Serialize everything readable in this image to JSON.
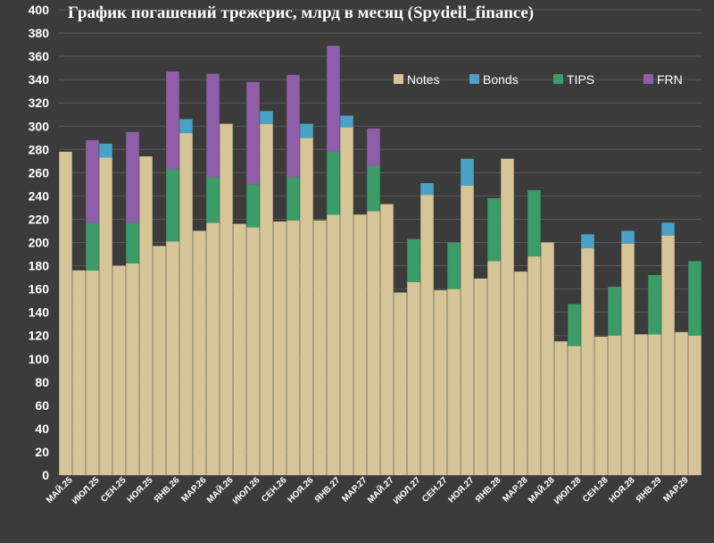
{
  "chart_data": {
    "type": "bar",
    "stacked": true,
    "title": "График погашений трежерис, млрд в месяц (Spydell_finance)",
    "ylim": [
      0,
      400
    ],
    "ytick_step": 20,
    "grid": true,
    "legend_position": "top-right",
    "categories": [
      "МАЙ.25",
      "ИЮН.25",
      "ИЮЛ.25",
      "АВГ.25",
      "СЕН.25",
      "ОКТ.25",
      "НОЯ.25",
      "ДЕК.25",
      "ЯНВ.26",
      "ФЕВ.26",
      "МАР.26",
      "АПР.26",
      "МАЙ.26",
      "ИЮН.26",
      "ИЮЛ.26",
      "АВГ.26",
      "СЕН.26",
      "ОКТ.26",
      "НОЯ.26",
      "ДЕК.26",
      "ЯНВ.27",
      "ФЕВ.27",
      "МАР.27",
      "АПР.27",
      "МАЙ.27",
      "ИЮН.27",
      "ИЮЛ.27",
      "АВГ.27",
      "СЕН.27",
      "ОКТ.27",
      "НОЯ.27",
      "ДЕК.27",
      "ЯНВ.28",
      "ФЕВ.28",
      "МАР.28",
      "АПР.28",
      "МАЙ.28",
      "ИЮН.28",
      "ИЮЛ.28",
      "АВГ.28",
      "СЕН.28",
      "ОКТ.28",
      "НОЯ.28",
      "ДЕК.28",
      "ЯНВ.29",
      "ФЕВ.29",
      "МАР.29",
      "АПР.29"
    ],
    "visible_xticks": [
      "МАЙ.25",
      "ИЮЛ.25",
      "СЕН.25",
      "НОЯ.25",
      "ЯНВ.26",
      "МАР.26",
      "МАЙ.26",
      "ИЮЛ.26",
      "СЕН.26",
      "НОЯ.26",
      "ЯНВ.27",
      "МАР.27",
      "МАЙ.27",
      "ИЮЛ.27",
      "СЕН.27",
      "НОЯ.27",
      "ЯНВ.28",
      "МАР.28",
      "МАЙ.28",
      "ИЮЛ.28",
      "СЕН.28",
      "НОЯ.28",
      "ЯНВ.29",
      "МАР.29"
    ],
    "series": [
      {
        "name": "Notes",
        "color": "#d6c596",
        "values": [
          278,
          176,
          176,
          273,
          180,
          182,
          274,
          197,
          201,
          294,
          210,
          217,
          302,
          216,
          213,
          302,
          218,
          219,
          290,
          219,
          224,
          299,
          224,
          227,
          233,
          157,
          166,
          241,
          159,
          160,
          249,
          169,
          184,
          272,
          175,
          188,
          200,
          115,
          111,
          195,
          119,
          120,
          199,
          121,
          121,
          206,
          123,
          120
        ]
      },
      {
        "name": "Bonds",
        "color": "#4aa3c7",
        "values": [
          0,
          0,
          0,
          12,
          0,
          0,
          0,
          0,
          0,
          12,
          0,
          0,
          0,
          0,
          0,
          11,
          0,
          0,
          12,
          0,
          0,
          10,
          0,
          0,
          0,
          0,
          0,
          10,
          0,
          0,
          23,
          0,
          0,
          0,
          0,
          0,
          0,
          0,
          0,
          12,
          0,
          0,
          11,
          0,
          0,
          11,
          0,
          0
        ]
      },
      {
        "name": "TIPS",
        "color": "#3a9c66",
        "values": [
          0,
          0,
          41,
          0,
          0,
          35,
          0,
          0,
          62,
          0,
          0,
          39,
          0,
          0,
          37,
          0,
          0,
          37,
          0,
          0,
          54,
          0,
          0,
          39,
          0,
          0,
          37,
          0,
          0,
          40,
          0,
          0,
          54,
          0,
          0,
          57,
          0,
          0,
          36,
          0,
          0,
          42,
          0,
          0,
          51,
          0,
          0,
          64
        ]
      },
      {
        "name": "FRN",
        "color": "#8e5fa8",
        "values": [
          0,
          0,
          71,
          0,
          0,
          78,
          0,
          0,
          84,
          0,
          0,
          89,
          0,
          0,
          88,
          0,
          0,
          88,
          0,
          0,
          91,
          0,
          0,
          32,
          0,
          0,
          0,
          0,
          0,
          0,
          0,
          0,
          0,
          0,
          0,
          0,
          0,
          0,
          0,
          0,
          0,
          0,
          0,
          0,
          0,
          0,
          0,
          0
        ]
      }
    ]
  }
}
